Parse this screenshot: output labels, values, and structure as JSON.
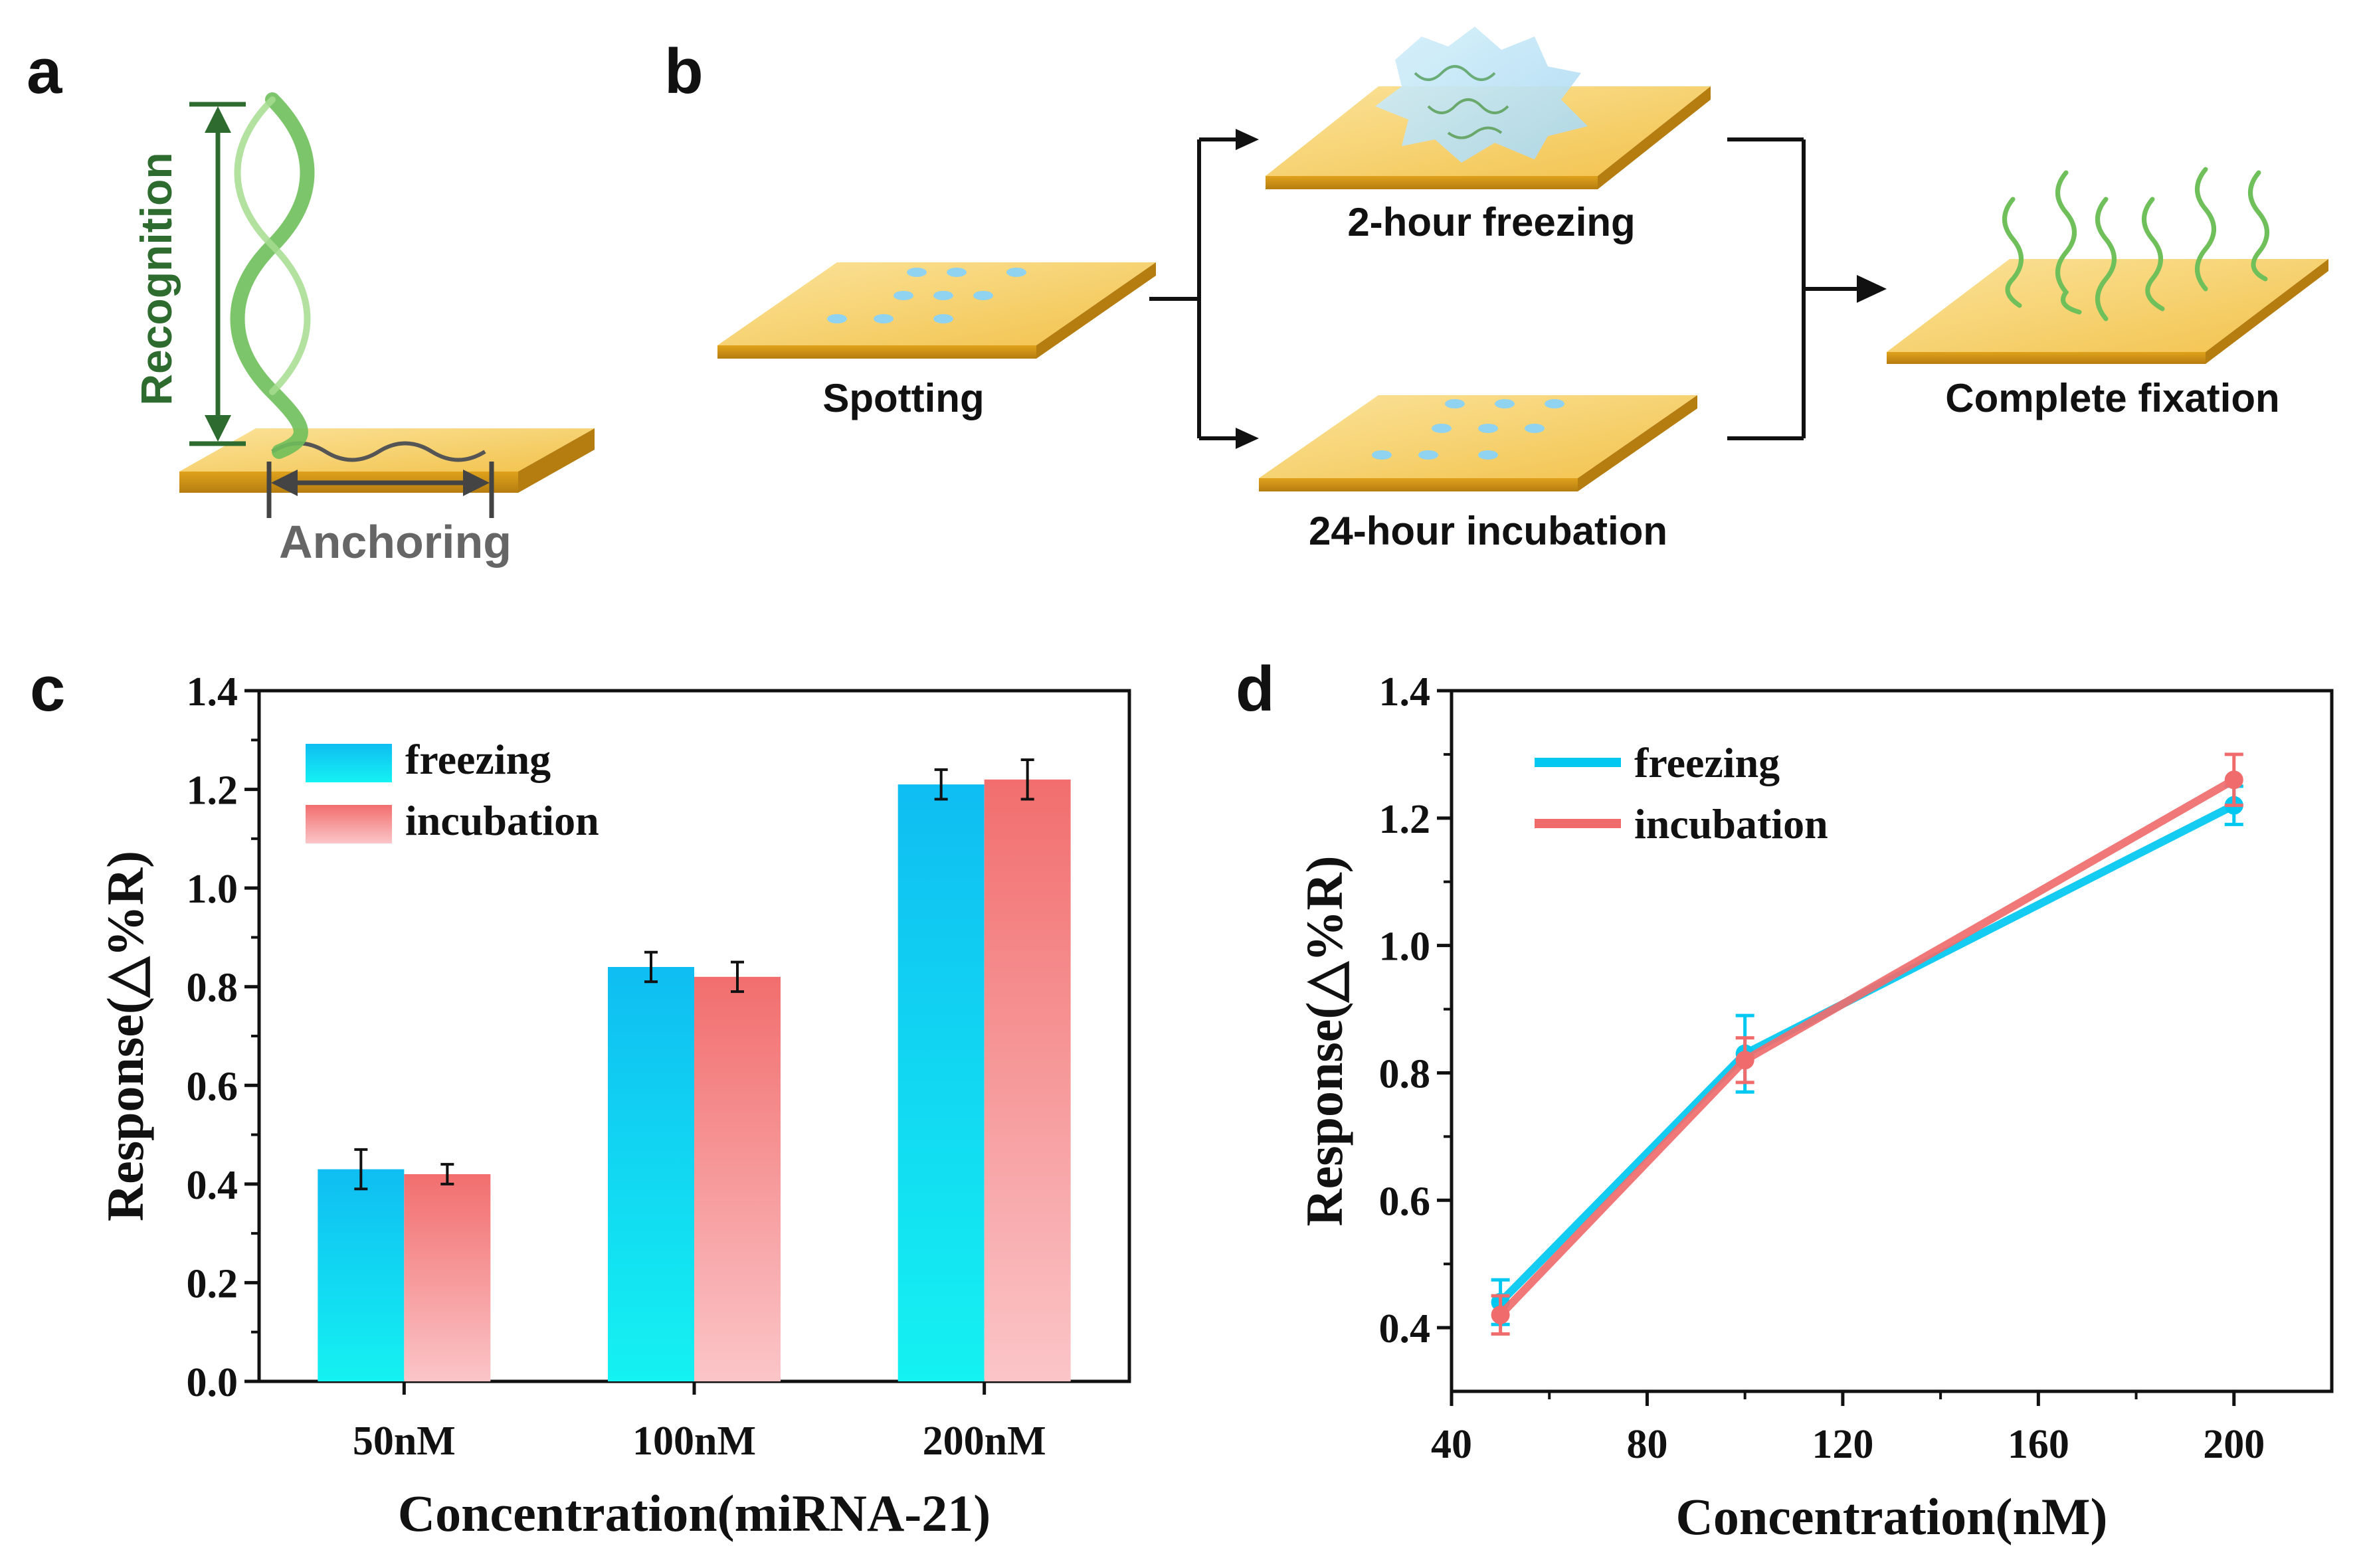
{
  "panel_labels": {
    "a": "a",
    "b": "b",
    "c": "c",
    "d": "d"
  },
  "diagram_a": {
    "recognition_label": "Recognition",
    "anchoring_label": "Anchoring"
  },
  "diagram_b": {
    "spotting_label": "Spotting",
    "freezing_label": "2-hour freezing",
    "incubation_label": "24-hour incubation",
    "fixation_label": "Complete fixation"
  },
  "colors": {
    "freezing": "#00c8f0",
    "incubation": "#f06c6c",
    "gold": "#f2c24c",
    "helix": "#6fbf5a",
    "recognition_arrow": "#2e6b2e"
  },
  "chart_data": [
    {
      "type": "bar",
      "title": "",
      "xlabel": "Concentration(miRNA-21)",
      "ylabel": "Response(△%R)",
      "categories": [
        "50nM",
        "100nM",
        "200nM"
      ],
      "ylim": [
        0,
        1.4
      ],
      "yticks": [
        "0.0",
        "0.2",
        "0.4",
        "0.6",
        "0.8",
        "1.0",
        "1.2",
        "1.4"
      ],
      "series": [
        {
          "name": "freezing",
          "values": [
            0.43,
            0.84,
            1.21
          ],
          "errors": [
            0.04,
            0.03,
            0.03
          ]
        },
        {
          "name": "incubation",
          "values": [
            0.42,
            0.82,
            1.22
          ],
          "errors": [
            0.02,
            0.03,
            0.04
          ]
        }
      ],
      "legend": "top-left"
    },
    {
      "type": "line",
      "title": "",
      "xlabel": "Concentration(nM)",
      "ylabel": "Response(△%R)",
      "x": [
        50,
        100,
        200
      ],
      "xlim": [
        40,
        220
      ],
      "ylim": [
        0.3,
        1.4
      ],
      "xticks": [
        "40",
        "80",
        "120",
        "160",
        "200"
      ],
      "yticks": [
        "0.4",
        "0.6",
        "0.8",
        "1.0",
        "1.2",
        "1.4"
      ],
      "series": [
        {
          "name": "freezing",
          "values": [
            0.44,
            0.83,
            1.22
          ],
          "errors": [
            0.035,
            0.06,
            0.03
          ]
        },
        {
          "name": "incubation",
          "values": [
            0.42,
            0.82,
            1.26
          ],
          "errors": [
            0.03,
            0.035,
            0.04
          ]
        }
      ],
      "legend": "top-left"
    }
  ]
}
